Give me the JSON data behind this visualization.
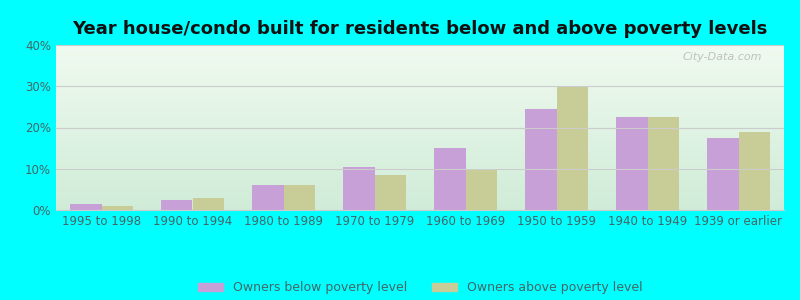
{
  "title": "Year house/condo built for residents below and above poverty levels",
  "categories": [
    "1995 to 1998",
    "1990 to 1994",
    "1980 to 1989",
    "1970 to 1979",
    "1960 to 1969",
    "1950 to 1959",
    "1940 to 1949",
    "1939 or earlier"
  ],
  "below_poverty": [
    1.5,
    2.5,
    6.0,
    10.5,
    15.0,
    24.5,
    22.5,
    17.5
  ],
  "above_poverty": [
    1.0,
    3.0,
    6.0,
    8.5,
    10.0,
    30.0,
    22.5,
    19.0
  ],
  "below_color": "#c8a0d8",
  "above_color": "#c8cc96",
  "bg_top_color": "#f0faf0",
  "bg_bottom_color": "#d0ecd8",
  "outer_background": "#00ffff",
  "ylim": [
    0,
    40
  ],
  "yticks": [
    0,
    10,
    20,
    30,
    40
  ],
  "legend_below": "Owners below poverty level",
  "legend_above": "Owners above poverty level",
  "bar_width": 0.35,
  "grid_color": "#cccccc",
  "title_fontsize": 13,
  "tick_fontsize": 8.5,
  "legend_fontsize": 9,
  "tick_color": "#446666",
  "watermark": "City-Data.com"
}
